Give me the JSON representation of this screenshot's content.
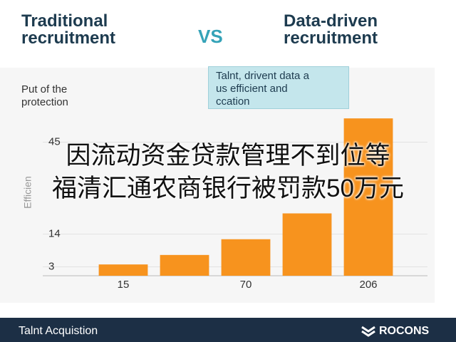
{
  "chart_data": {
    "type": "bar",
    "left_title": "Traditional\nrecruitment",
    "vs_label": "VS",
    "right_title": "Data-driven\nrecruitment",
    "annotation": "Put of the\nprotection",
    "callout": "Talnt, drivent data a\nus efficient and\nccation",
    "y_axis_label": "Efficien",
    "categories": [
      "15",
      null,
      "70",
      null,
      "206"
    ],
    "values": [
      3.8,
      7,
      12.3,
      21,
      53
    ],
    "color": "#f7931e",
    "ylim": [
      0,
      60
    ],
    "yticks": [
      3,
      14,
      45
    ],
    "overlay": "因流动资金贷款管理不到位等\n福清汇通农商银行被罚款50万元",
    "footer_left": "Talnt Acquistion",
    "footer_brand": "ROCONS"
  }
}
